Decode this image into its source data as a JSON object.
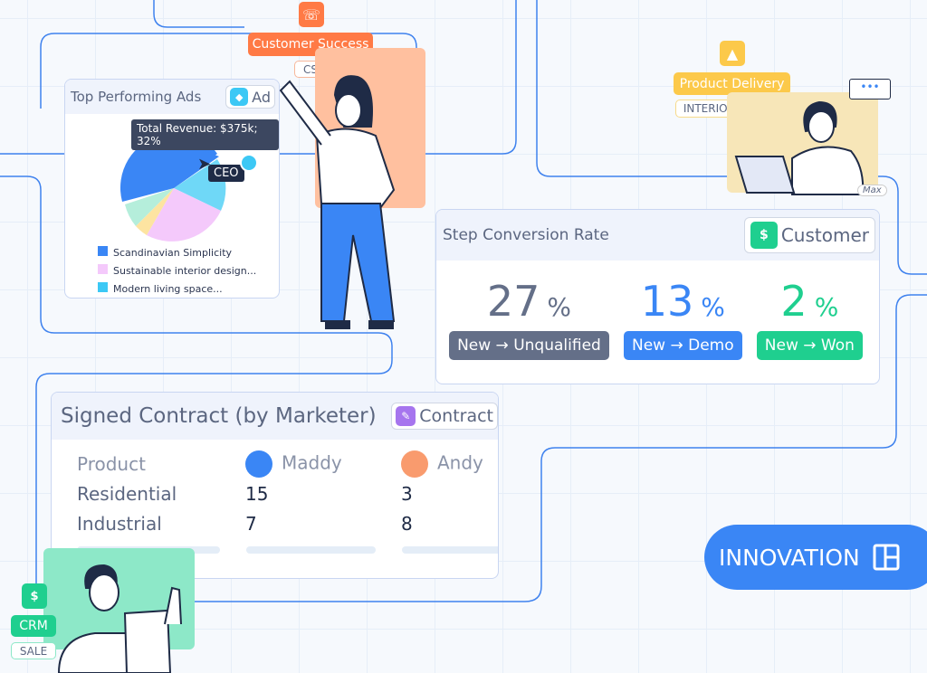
{
  "customer_success": {
    "icon": "headset-icon",
    "label": "Customer Success",
    "badge": "CS",
    "color": "#ff7a45"
  },
  "product_delivery": {
    "icon": "shapes-icon",
    "label": "Product Delivery",
    "badge": "INTERIOR EXPERT",
    "person": "Max",
    "color": "#fcc94a"
  },
  "crm": {
    "icon": "customer-basket-icon",
    "label": "CRM",
    "badge": "SALE",
    "color": "#1fcf8f"
  },
  "ads_card": {
    "title": "Top Performing Ads",
    "tag": "Ad",
    "tooltip": "Total Revenue: $375k; 32%",
    "cursor_label": "CEO",
    "legend": [
      {
        "label": "Scandinavian Simplicity",
        "color": "#3a86f5"
      },
      {
        "label": "Sustainable interior design...",
        "color": "#f4c9fb"
      },
      {
        "label": "Modern living space...",
        "color": "#3cc8f5"
      }
    ]
  },
  "conversion_card": {
    "title": "Step Conversion Rate",
    "tag": "Customer",
    "stats": [
      {
        "value": "27",
        "unit": "%",
        "label": "New → Unqualified",
        "color": "#646f88"
      },
      {
        "value": "13",
        "unit": "%",
        "label": "New → Demo",
        "color": "#3a86f5"
      },
      {
        "value": "2",
        "unit": "%",
        "label": "New → Won",
        "color": "#1fcf8f"
      }
    ]
  },
  "contract_card": {
    "title": "Signed Contract (by Marketer)",
    "tag": "Contract",
    "headers": [
      "Product",
      "Maddy",
      "Andy"
    ],
    "rows": [
      [
        "Residential",
        "15",
        "3"
      ],
      [
        "Industrial",
        "7",
        "8"
      ]
    ]
  },
  "innovation": {
    "label": "INNOVATION",
    "icon": "layout-icon"
  }
}
